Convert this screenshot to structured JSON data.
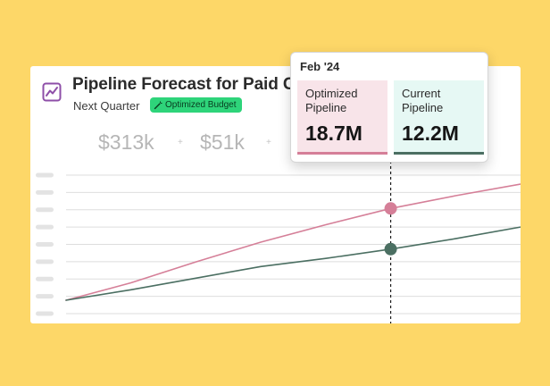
{
  "card": {
    "title": "Pipeline Forecast for Paid Cha",
    "period": "Next Quarter",
    "badge_label": "Optimized Budget"
  },
  "metrics": [
    {
      "value": "$313k"
    },
    {
      "value": "$51k"
    }
  ],
  "metric_separator": "+",
  "tooltip": {
    "date": "Feb '24",
    "optimized": {
      "label": "Optimized Pipeline",
      "value": "18.7M"
    },
    "current": {
      "label": "Current Pipeline",
      "value": "12.2M"
    }
  },
  "colors": {
    "background": "#FDD768",
    "optimized": "#D57F98",
    "current": "#4B6F62",
    "badge": "#2ED47A",
    "icon": "#8E4FA8"
  },
  "chart_data": {
    "type": "line",
    "title": "Pipeline Forecast for Paid Cha",
    "xlabel": "",
    "ylabel": "",
    "ytick_labels_visible": false,
    "highlight_index": 5,
    "ylim": [
      0,
      10
    ],
    "x": [
      0,
      1,
      2,
      3,
      4,
      5,
      6,
      7
    ],
    "series": [
      {
        "name": "Optimized Pipeline",
        "values": [
          0.0,
          1.5,
          3.3,
          5.0,
          6.5,
          7.9,
          9.0,
          10.0
        ]
      },
      {
        "name": "Current Pipeline",
        "values": [
          0.0,
          0.9,
          1.9,
          2.9,
          3.6,
          4.4,
          5.3,
          6.3
        ]
      }
    ]
  }
}
